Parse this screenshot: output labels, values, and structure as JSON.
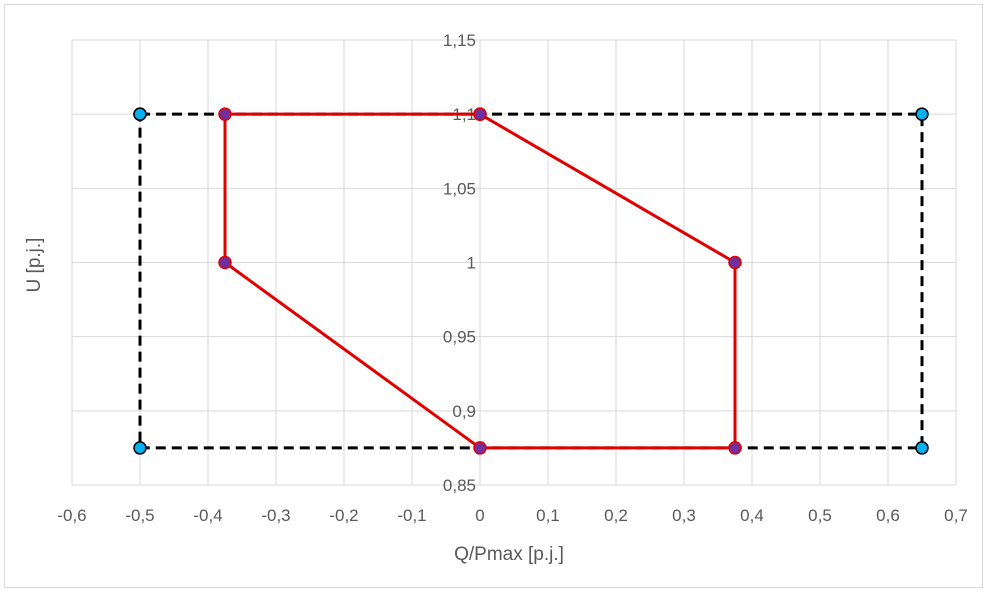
{
  "chart_data": {
    "type": "scatter",
    "title": "",
    "xlabel": "Q/Pmax [p.j.]",
    "ylabel": "U [p.j.]",
    "xlim": [
      -0.6,
      0.7
    ],
    "ylim": [
      0.85,
      1.15
    ],
    "x_ticks": [
      "-0,6",
      "-0,5",
      "-0,4",
      "-0,3",
      "-0,2",
      "-0,1",
      "0",
      "0,1",
      "0,2",
      "0,3",
      "0,4",
      "0,5",
      "0,6",
      "0,7"
    ],
    "y_ticks": [
      "0,85",
      "0,9",
      "0,95",
      "1",
      "1,05",
      "1,1",
      "1,15"
    ],
    "grid": true,
    "legend": "none",
    "series": [
      {
        "color": "#000000",
        "line_style": "dashed",
        "marker_color": "#00b0f0",
        "points": [
          {
            "x": -0.5,
            "y": 1.1
          },
          {
            "x": 0.65,
            "y": 1.1
          },
          {
            "x": 0.65,
            "y": 0.875
          },
          {
            "x": -0.5,
            "y": 0.875
          },
          {
            "x": -0.5,
            "y": 1.1
          }
        ]
      },
      {
        "color": "#e00000",
        "line_style": "solid",
        "marker_color": "#7030a0",
        "points": [
          {
            "x": 0,
            "y": 1.1
          },
          {
            "x": 0.375,
            "y": 1.0
          },
          {
            "x": 0.375,
            "y": 0.875
          },
          {
            "x": 0,
            "y": 0.875
          },
          {
            "x": -0.375,
            "y": 1.0
          },
          {
            "x": -0.375,
            "y": 1.1
          },
          {
            "x": 0,
            "y": 1.1
          }
        ]
      }
    ]
  }
}
